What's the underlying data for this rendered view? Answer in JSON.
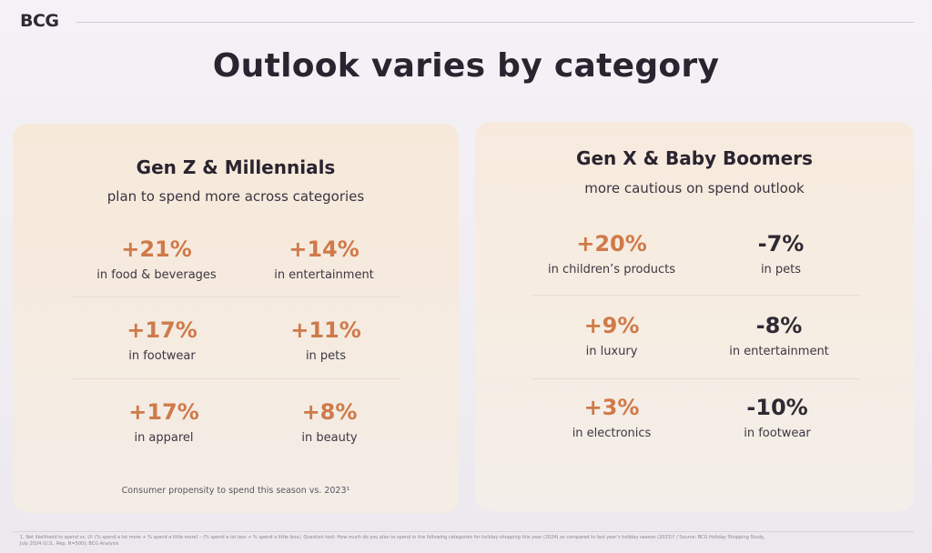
{
  "header": {
    "logo": "BCG",
    "title": "Outlook varies by category"
  },
  "left_panel": {
    "title": "Gen Z & Millennials",
    "subtitle": "plan to spend more across categories",
    "items": [
      {
        "value": "+21%",
        "label": "in food & beverages"
      },
      {
        "value": "+14%",
        "label": "in entertainment"
      },
      {
        "value": "+17%",
        "label": "in footwear"
      },
      {
        "value": "+11%",
        "label": "in pets"
      },
      {
        "value": "+17%",
        "label": "in apparel"
      },
      {
        "value": "+8%",
        "label": "in beauty"
      }
    ],
    "footnote": "Consumer propensity to spend this season vs. 2023¹"
  },
  "right_panel": {
    "title": "Gen X & Baby Boomers",
    "subtitle": "more cautious on spend outlook",
    "items": [
      {
        "value": "+20%",
        "label": "in children’s products"
      },
      {
        "value": "-7%",
        "label": "in pets"
      },
      {
        "value": "+9%",
        "label": "in luxury"
      },
      {
        "value": "-8%",
        "label": "in entertainment"
      },
      {
        "value": "+3%",
        "label": "in electronics"
      },
      {
        "value": "-10%",
        "label": "in footwear"
      }
    ]
  },
  "footer": {
    "source_line1": "1. Net likelihood to spend vs. LY: (% spend a lot more + % spend a little more) – (% spend a lot less + % spend a little less). Question text: How much do you plan to spend in the following categories for holiday shopping this year (2024) as compared to last year’s holiday season (2023)? / Source: BCG Holiday Shopping Study,",
    "source_line2": "July 2024 (U.S., Rep. N=500); BCG Analysis"
  },
  "colors": {
    "accent_positive": "#cf7a4a",
    "negative_value": "#2f2a34",
    "panel_background": "#f6ebe0"
  }
}
